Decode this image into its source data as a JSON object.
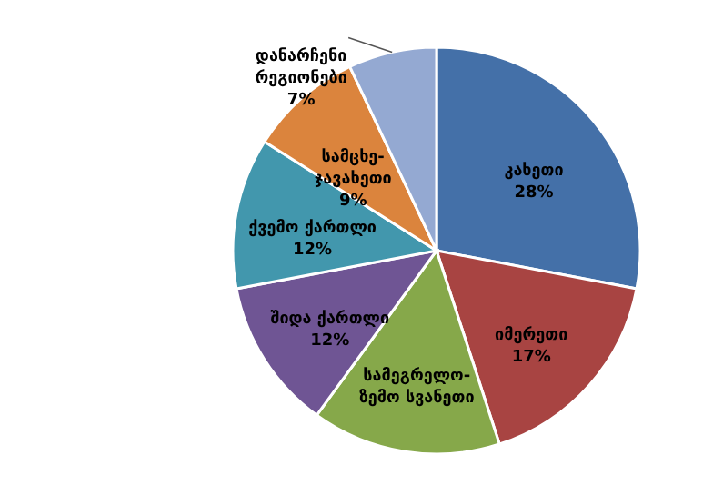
{
  "chart_data": {
    "type": "pie",
    "categories": [
      "კახეთი",
      "იმერეთი",
      "სამეგრელო-ზემო სვანეთი",
      "შიდა ქართლი",
      "ქვემო ქართლი",
      "სამცხე-ჯავახეთი",
      "დანარჩენი რეგიონები"
    ],
    "values": [
      28,
      17,
      15,
      12,
      12,
      9,
      7
    ],
    "value_labels": [
      "28%",
      "17%",
      null,
      "12%",
      "12%",
      "9%",
      "7%"
    ],
    "colors": [
      "#4470a8",
      "#a84442",
      "#86a84a",
      "#6f5594",
      "#4297ad",
      "#db843d",
      "#94a9d2"
    ]
  }
}
